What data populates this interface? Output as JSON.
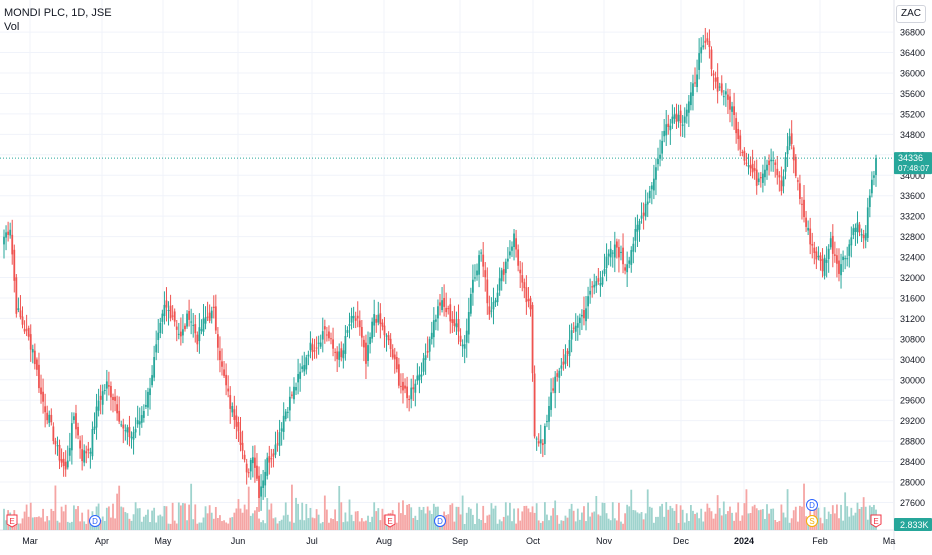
{
  "header": {
    "symbol": "MONDI PLC, 1D, JSE",
    "indicator": "Vol",
    "currency": "ZAC"
  },
  "colors": {
    "up": "#26a69a",
    "down": "#ef5350",
    "vol_up": "#9ed3cd",
    "vol_down": "#f5a5a4",
    "grid": "#f0f3fa",
    "axis_text": "#131722",
    "dividend": "#2962ff",
    "earnings": "#f23645",
    "split": "#f5b000"
  },
  "chart_data": {
    "type": "candlestick",
    "title": "",
    "y_axis": {
      "ticks": [
        27600,
        28000,
        28400,
        28800,
        29200,
        29600,
        30000,
        30400,
        30800,
        31200,
        31600,
        32000,
        32400,
        32800,
        33200,
        33600,
        34000,
        34400,
        34800,
        35200,
        35600,
        36000,
        36400,
        36800
      ],
      "ylim": [
        27200,
        37200
      ],
      "position": "right"
    },
    "x_axis": {
      "labels": [
        "Mar",
        "Apr",
        "May",
        "Jun",
        "Jul",
        "Aug",
        "Sep",
        "Oct",
        "Nov",
        "Dec",
        "2024",
        "Feb",
        "Ma"
      ]
    },
    "grid": true,
    "last_price": {
      "value": 34336,
      "label": "34336",
      "countdown": "07:48:07"
    },
    "volume_last_label": "2.833K",
    "events": [
      {
        "type": "earnings",
        "label": "E",
        "month": "Mar"
      },
      {
        "type": "dividend",
        "label": "D",
        "month": "Apr"
      },
      {
        "type": "earnings",
        "label": "E",
        "month": "Aug"
      },
      {
        "type": "dividend",
        "label": "D",
        "month": "Aug"
      },
      {
        "type": "dividend",
        "label": "D",
        "month": "Feb"
      },
      {
        "type": "split",
        "label": "S",
        "month": "Feb"
      },
      {
        "type": "earnings",
        "label": "E",
        "month": "Feb"
      }
    ],
    "price_path": [
      [
        0,
        32800
      ],
      [
        3,
        33000
      ],
      [
        6,
        31400
      ],
      [
        10,
        31000
      ],
      [
        14,
        30600
      ],
      [
        18,
        29700
      ],
      [
        22,
        29200
      ],
      [
        26,
        28600
      ],
      [
        30,
        28200
      ],
      [
        34,
        29300
      ],
      [
        38,
        28500
      ],
      [
        42,
        28700
      ],
      [
        46,
        29600
      ],
      [
        50,
        29900
      ],
      [
        54,
        29600
      ],
      [
        58,
        29000
      ],
      [
        62,
        28900
      ],
      [
        66,
        29200
      ],
      [
        70,
        29700
      ],
      [
        74,
        30600
      ],
      [
        78,
        31400
      ],
      [
        82,
        31300
      ],
      [
        86,
        30800
      ],
      [
        90,
        31300
      ],
      [
        94,
        30800
      ],
      [
        98,
        31200
      ],
      [
        102,
        31300
      ],
      [
        106,
        30200
      ],
      [
        110,
        29500
      ],
      [
        114,
        29100
      ],
      [
        118,
        28100
      ],
      [
        121,
        28600
      ],
      [
        124,
        27800
      ],
      [
        128,
        28400
      ],
      [
        132,
        28700
      ],
      [
        136,
        29300
      ],
      [
        140,
        29700
      ],
      [
        144,
        30100
      ],
      [
        148,
        30600
      ],
      [
        152,
        30700
      ],
      [
        156,
        31000
      ],
      [
        160,
        30600
      ],
      [
        164,
        30400
      ],
      [
        168,
        31100
      ],
      [
        172,
        31200
      ],
      [
        176,
        30300
      ],
      [
        180,
        31300
      ],
      [
        184,
        31000
      ],
      [
        188,
        30600
      ],
      [
        192,
        30000
      ],
      [
        196,
        29600
      ],
      [
        200,
        30000
      ],
      [
        204,
        30300
      ],
      [
        208,
        31000
      ],
      [
        212,
        31500
      ],
      [
        216,
        31300
      ],
      [
        220,
        31000
      ],
      [
        224,
        30700
      ],
      [
        228,
        32000
      ],
      [
        232,
        32500
      ],
      [
        236,
        31300
      ],
      [
        240,
        31800
      ],
      [
        244,
        32300
      ],
      [
        248,
        32800
      ],
      [
        252,
        31800
      ],
      [
        256,
        31300
      ],
      [
        258,
        29000
      ],
      [
        262,
        28700
      ],
      [
        266,
        29800
      ],
      [
        270,
        30100
      ],
      [
        274,
        30600
      ],
      [
        278,
        31100
      ],
      [
        282,
        31300
      ],
      [
        286,
        31800
      ],
      [
        290,
        32000
      ],
      [
        294,
        32400
      ],
      [
        298,
        32600
      ],
      [
        302,
        32200
      ],
      [
        306,
        32700
      ],
      [
        310,
        33200
      ],
      [
        314,
        33700
      ],
      [
        318,
        34300
      ],
      [
        322,
        35000
      ],
      [
        326,
        35200
      ],
      [
        330,
        35100
      ],
      [
        334,
        35500
      ],
      [
        338,
        36300
      ],
      [
        342,
        36600
      ],
      [
        346,
        35800
      ],
      [
        350,
        35600
      ],
      [
        354,
        35300
      ],
      [
        358,
        34600
      ],
      [
        362,
        34200
      ],
      [
        366,
        33900
      ],
      [
        370,
        34200
      ],
      [
        374,
        34400
      ],
      [
        378,
        33700
      ],
      [
        382,
        34800
      ],
      [
        386,
        33800
      ],
      [
        390,
        33000
      ],
      [
        394,
        32500
      ],
      [
        398,
        32200
      ],
      [
        402,
        32700
      ],
      [
        406,
        32200
      ],
      [
        410,
        32500
      ],
      [
        414,
        33100
      ],
      [
        418,
        32700
      ],
      [
        422,
        33800
      ],
      [
        424,
        34336
      ]
    ]
  }
}
